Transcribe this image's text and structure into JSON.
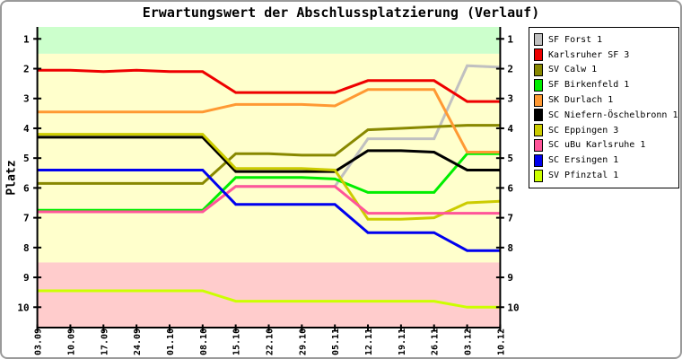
{
  "window": {
    "frame_color": "#9a9a9a",
    "background": "#ffffff"
  },
  "chart_data": {
    "type": "line",
    "title": "Erwartungswert der Abschlussplatzierung (Verlauf)",
    "ylabel": "Platz",
    "y_axis_inverted": true,
    "y_range": [
      0.6,
      10.68
    ],
    "y_ticks": [
      1,
      2,
      3,
      4,
      5,
      6,
      7,
      8,
      9,
      10
    ],
    "grid": false,
    "legend_position": "top-right-outside",
    "x_labels": [
      "03.09",
      "10.09",
      "17.09",
      "24.09",
      "01.10",
      "08.10",
      "15.10",
      "22.10",
      "29.10",
      "05.11",
      "12.11",
      "19.11",
      "26.11",
      "03.12",
      "10.12"
    ],
    "bands": [
      {
        "name": "promotion-zone",
        "from": 0.6,
        "to": 1.5,
        "color": "#CCFFCC"
      },
      {
        "name": "middle-zone",
        "from": 1.5,
        "to": 8.5,
        "color": "#FFFFCC"
      },
      {
        "name": "relegation-zone",
        "from": 8.5,
        "to": 10.68,
        "color": "#FFCCCC"
      }
    ],
    "series": [
      {
        "name": "SF Forst 1",
        "color": "#C0C0C0",
        "values": [
          6.8,
          6.8,
          6.8,
          6.8,
          6.8,
          6.8,
          5.95,
          5.95,
          5.95,
          5.95,
          4.35,
          4.35,
          4.35,
          1.9,
          1.95
        ]
      },
      {
        "name": "Karlsruher SF 3",
        "color": "#EE0000",
        "values": [
          2.05,
          2.05,
          2.1,
          2.05,
          2.1,
          2.1,
          2.8,
          2.8,
          2.8,
          2.8,
          2.4,
          2.4,
          2.4,
          3.1,
          3.1
        ]
      },
      {
        "name": "SV Calw 1",
        "color": "#888800",
        "values": [
          5.85,
          5.85,
          5.85,
          5.85,
          5.85,
          5.85,
          4.85,
          4.85,
          4.9,
          4.9,
          4.05,
          4.0,
          3.95,
          3.9,
          3.9
        ]
      },
      {
        "name": "SF Birkenfeld 1",
        "color": "#00EE00",
        "values": [
          6.75,
          6.75,
          6.75,
          6.75,
          6.75,
          6.75,
          5.65,
          5.65,
          5.65,
          5.7,
          6.15,
          6.15,
          6.15,
          4.85,
          4.85
        ]
      },
      {
        "name": "SK Durlach 1",
        "color": "#FF9933",
        "values": [
          3.45,
          3.45,
          3.45,
          3.45,
          3.45,
          3.45,
          3.2,
          3.2,
          3.2,
          3.25,
          2.7,
          2.7,
          2.7,
          4.8,
          4.8
        ]
      },
      {
        "name": "SC Niefern-Öschelbronn 1",
        "color": "#000000",
        "values": [
          4.3,
          4.3,
          4.3,
          4.3,
          4.3,
          4.3,
          5.45,
          5.45,
          5.45,
          5.45,
          4.75,
          4.75,
          4.8,
          5.4,
          5.4
        ]
      },
      {
        "name": "SC Eppingen 3",
        "color": "#CCCC00",
        "values": [
          4.2,
          4.2,
          4.2,
          4.2,
          4.2,
          4.2,
          5.35,
          5.35,
          5.35,
          5.4,
          7.05,
          7.05,
          7.0,
          6.5,
          6.45
        ]
      },
      {
        "name": "SC uBu Karlsruhe 1",
        "color": "#FF5599",
        "values": [
          6.8,
          6.8,
          6.8,
          6.8,
          6.8,
          6.8,
          5.95,
          5.95,
          5.95,
          5.95,
          6.85,
          6.85,
          6.85,
          6.85,
          6.85
        ]
      },
      {
        "name": "SC Ersingen 1",
        "color": "#0000EE",
        "values": [
          5.4,
          5.4,
          5.4,
          5.4,
          5.4,
          5.4,
          6.55,
          6.55,
          6.55,
          6.55,
          7.5,
          7.5,
          7.5,
          8.1,
          8.1
        ]
      },
      {
        "name": "SV Pfinztal 1",
        "color": "#CCFF00",
        "values": [
          9.45,
          9.45,
          9.45,
          9.45,
          9.45,
          9.45,
          9.8,
          9.8,
          9.8,
          9.8,
          9.8,
          9.8,
          9.8,
          10.0,
          10.0
        ]
      }
    ]
  }
}
